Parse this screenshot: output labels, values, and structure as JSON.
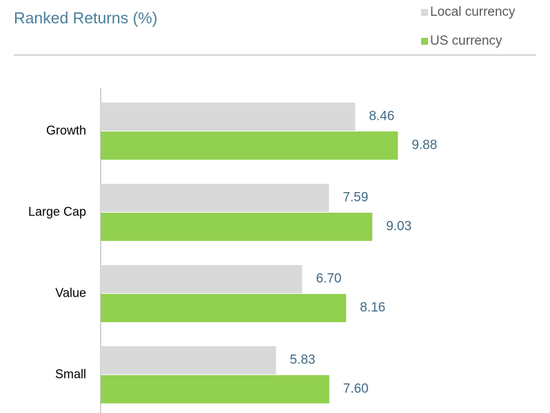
{
  "chart_data": {
    "type": "hbar",
    "title": "Ranked Returns (%)",
    "categories": [
      "Growth",
      "Large Cap",
      "Value",
      "Small"
    ],
    "series": [
      {
        "name": "Local currency",
        "color": "#d9d9d9",
        "values": [
          8.46,
          7.59,
          6.7,
          5.83
        ],
        "value_labels": [
          "8.46",
          "7.59",
          "6.70",
          "5.83"
        ]
      },
      {
        "name": "US currency",
        "color": "#92d050",
        "values": [
          9.88,
          9.03,
          8.16,
          7.6
        ],
        "value_labels": [
          "9.88",
          "9.03",
          "8.16",
          "7.60"
        ]
      }
    ],
    "xlim": [
      0,
      14.5
    ],
    "legend": "top-right"
  }
}
